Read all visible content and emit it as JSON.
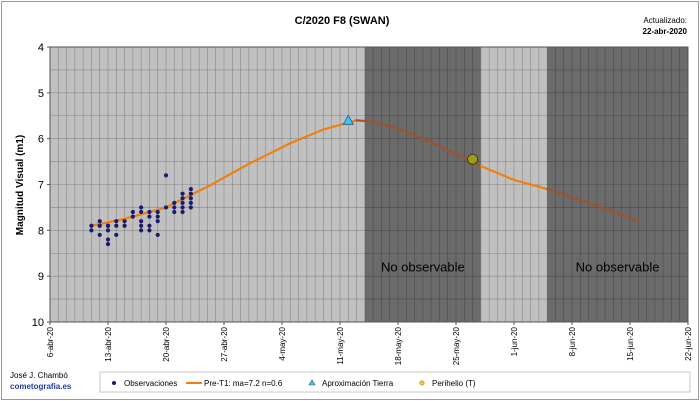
{
  "chart_data": {
    "type": "scatter",
    "title": "C/2020 F8 (SWAN)",
    "update_label": "Actualizado:",
    "update_date": "22-abr-2020",
    "ylabel": "Magnitud Visual (m1)",
    "xlabel": "",
    "y_inverted": true,
    "ylim": [
      4,
      10
    ],
    "y_ticks": [
      "4",
      "5",
      "6",
      "7",
      "8",
      "9",
      "10"
    ],
    "x_start": "2020-04-06",
    "x_end": "2020-06-22",
    "x_ticks": [
      "6-abr-20",
      "13-abr-20",
      "20-abr-20",
      "27-abr-20",
      "4-may-20",
      "11-may-20",
      "18-may-20",
      "25-may-20",
      "1-jun-20",
      "8-jun-20",
      "15-jun-20",
      "22-jun-20"
    ],
    "grid": true,
    "background_bands": [
      {
        "start": "2020-04-06",
        "end": "2020-05-14",
        "fill": "#c0c0c0"
      },
      {
        "start": "2020-05-14",
        "end": "2020-05-28",
        "fill": "#6b6b6b",
        "label": "No observable"
      },
      {
        "start": "2020-05-28",
        "end": "2020-06-05",
        "fill": "#c0c0c0"
      },
      {
        "start": "2020-06-05",
        "end": "2020-06-22",
        "fill": "#6b6b6b",
        "label": "No observable"
      }
    ],
    "series": [
      {
        "name": "Observaciones",
        "kind": "scatter",
        "color": "#1a1a6e",
        "points": [
          [
            "2020-04-11",
            7.9
          ],
          [
            "2020-04-11",
            8.0
          ],
          [
            "2020-04-12",
            7.8
          ],
          [
            "2020-04-12",
            8.1
          ],
          [
            "2020-04-12",
            7.9
          ],
          [
            "2020-04-13",
            7.9
          ],
          [
            "2020-04-13",
            8.3
          ],
          [
            "2020-04-13",
            8.2
          ],
          [
            "2020-04-13",
            8.0
          ],
          [
            "2020-04-13",
            7.9
          ],
          [
            "2020-04-14",
            7.8
          ],
          [
            "2020-04-14",
            7.9
          ],
          [
            "2020-04-14",
            8.1
          ],
          [
            "2020-04-15",
            7.8
          ],
          [
            "2020-04-15",
            7.9
          ],
          [
            "2020-04-16",
            7.6
          ],
          [
            "2020-04-16",
            7.7
          ],
          [
            "2020-04-17",
            7.5
          ],
          [
            "2020-04-17",
            7.6
          ],
          [
            "2020-04-17",
            7.8
          ],
          [
            "2020-04-17",
            7.9
          ],
          [
            "2020-04-17",
            8.0
          ],
          [
            "2020-04-18",
            7.7
          ],
          [
            "2020-04-18",
            8.0
          ],
          [
            "2020-04-18",
            7.6
          ],
          [
            "2020-04-18",
            7.9
          ],
          [
            "2020-04-19",
            7.6
          ],
          [
            "2020-04-19",
            7.7
          ],
          [
            "2020-04-19",
            7.8
          ],
          [
            "2020-04-19",
            8.1
          ],
          [
            "2020-04-20",
            7.5
          ],
          [
            "2020-04-20",
            6.8
          ],
          [
            "2020-04-21",
            7.4
          ],
          [
            "2020-04-21",
            7.6
          ],
          [
            "2020-04-21",
            7.5
          ],
          [
            "2020-04-22",
            7.2
          ],
          [
            "2020-04-22",
            7.3
          ],
          [
            "2020-04-22",
            7.4
          ],
          [
            "2020-04-22",
            7.5
          ],
          [
            "2020-04-22",
            7.6
          ],
          [
            "2020-04-23",
            7.1
          ],
          [
            "2020-04-23",
            7.2
          ],
          [
            "2020-04-23",
            7.3
          ],
          [
            "2020-04-23",
            7.4
          ],
          [
            "2020-04-23",
            7.5
          ]
        ]
      },
      {
        "name": "Pre-T1: ma=7.2 n=0.6",
        "kind": "line",
        "color": "#f07f10",
        "color_unobservable": "#a0522d",
        "points": [
          [
            "2020-04-11",
            7.9
          ],
          [
            "2020-04-15",
            7.75
          ],
          [
            "2020-04-20",
            7.5
          ],
          [
            "2020-04-25",
            7.05
          ],
          [
            "2020-04-30",
            6.55
          ],
          [
            "2020-05-05",
            6.1
          ],
          [
            "2020-05-09",
            5.8
          ],
          [
            "2020-05-13",
            5.6
          ],
          [
            "2020-05-15",
            5.63
          ],
          [
            "2020-05-18",
            5.78
          ],
          [
            "2020-05-21",
            6.0
          ],
          [
            "2020-05-25",
            6.33
          ],
          [
            "2020-05-28",
            6.6
          ],
          [
            "2020-06-01",
            6.9
          ],
          [
            "2020-06-05",
            7.1
          ],
          [
            "2020-06-10",
            7.4
          ],
          [
            "2020-06-15",
            7.72
          ],
          [
            "2020-06-16",
            7.8
          ]
        ]
      },
      {
        "name": "Aproximación Tierra",
        "kind": "marker",
        "shape": "triangle",
        "color": "#3fc6f0",
        "points": [
          [
            "2020-05-12",
            5.6
          ]
        ]
      },
      {
        "name": "Perihelio (T)",
        "kind": "marker",
        "shape": "circle",
        "color": "#9b9b1e",
        "points": [
          [
            "2020-05-27",
            6.45
          ]
        ]
      }
    ],
    "legend": {
      "placement": "bottom"
    }
  },
  "footer": {
    "author": "José J. Chambó",
    "site": "cometografia.es"
  }
}
